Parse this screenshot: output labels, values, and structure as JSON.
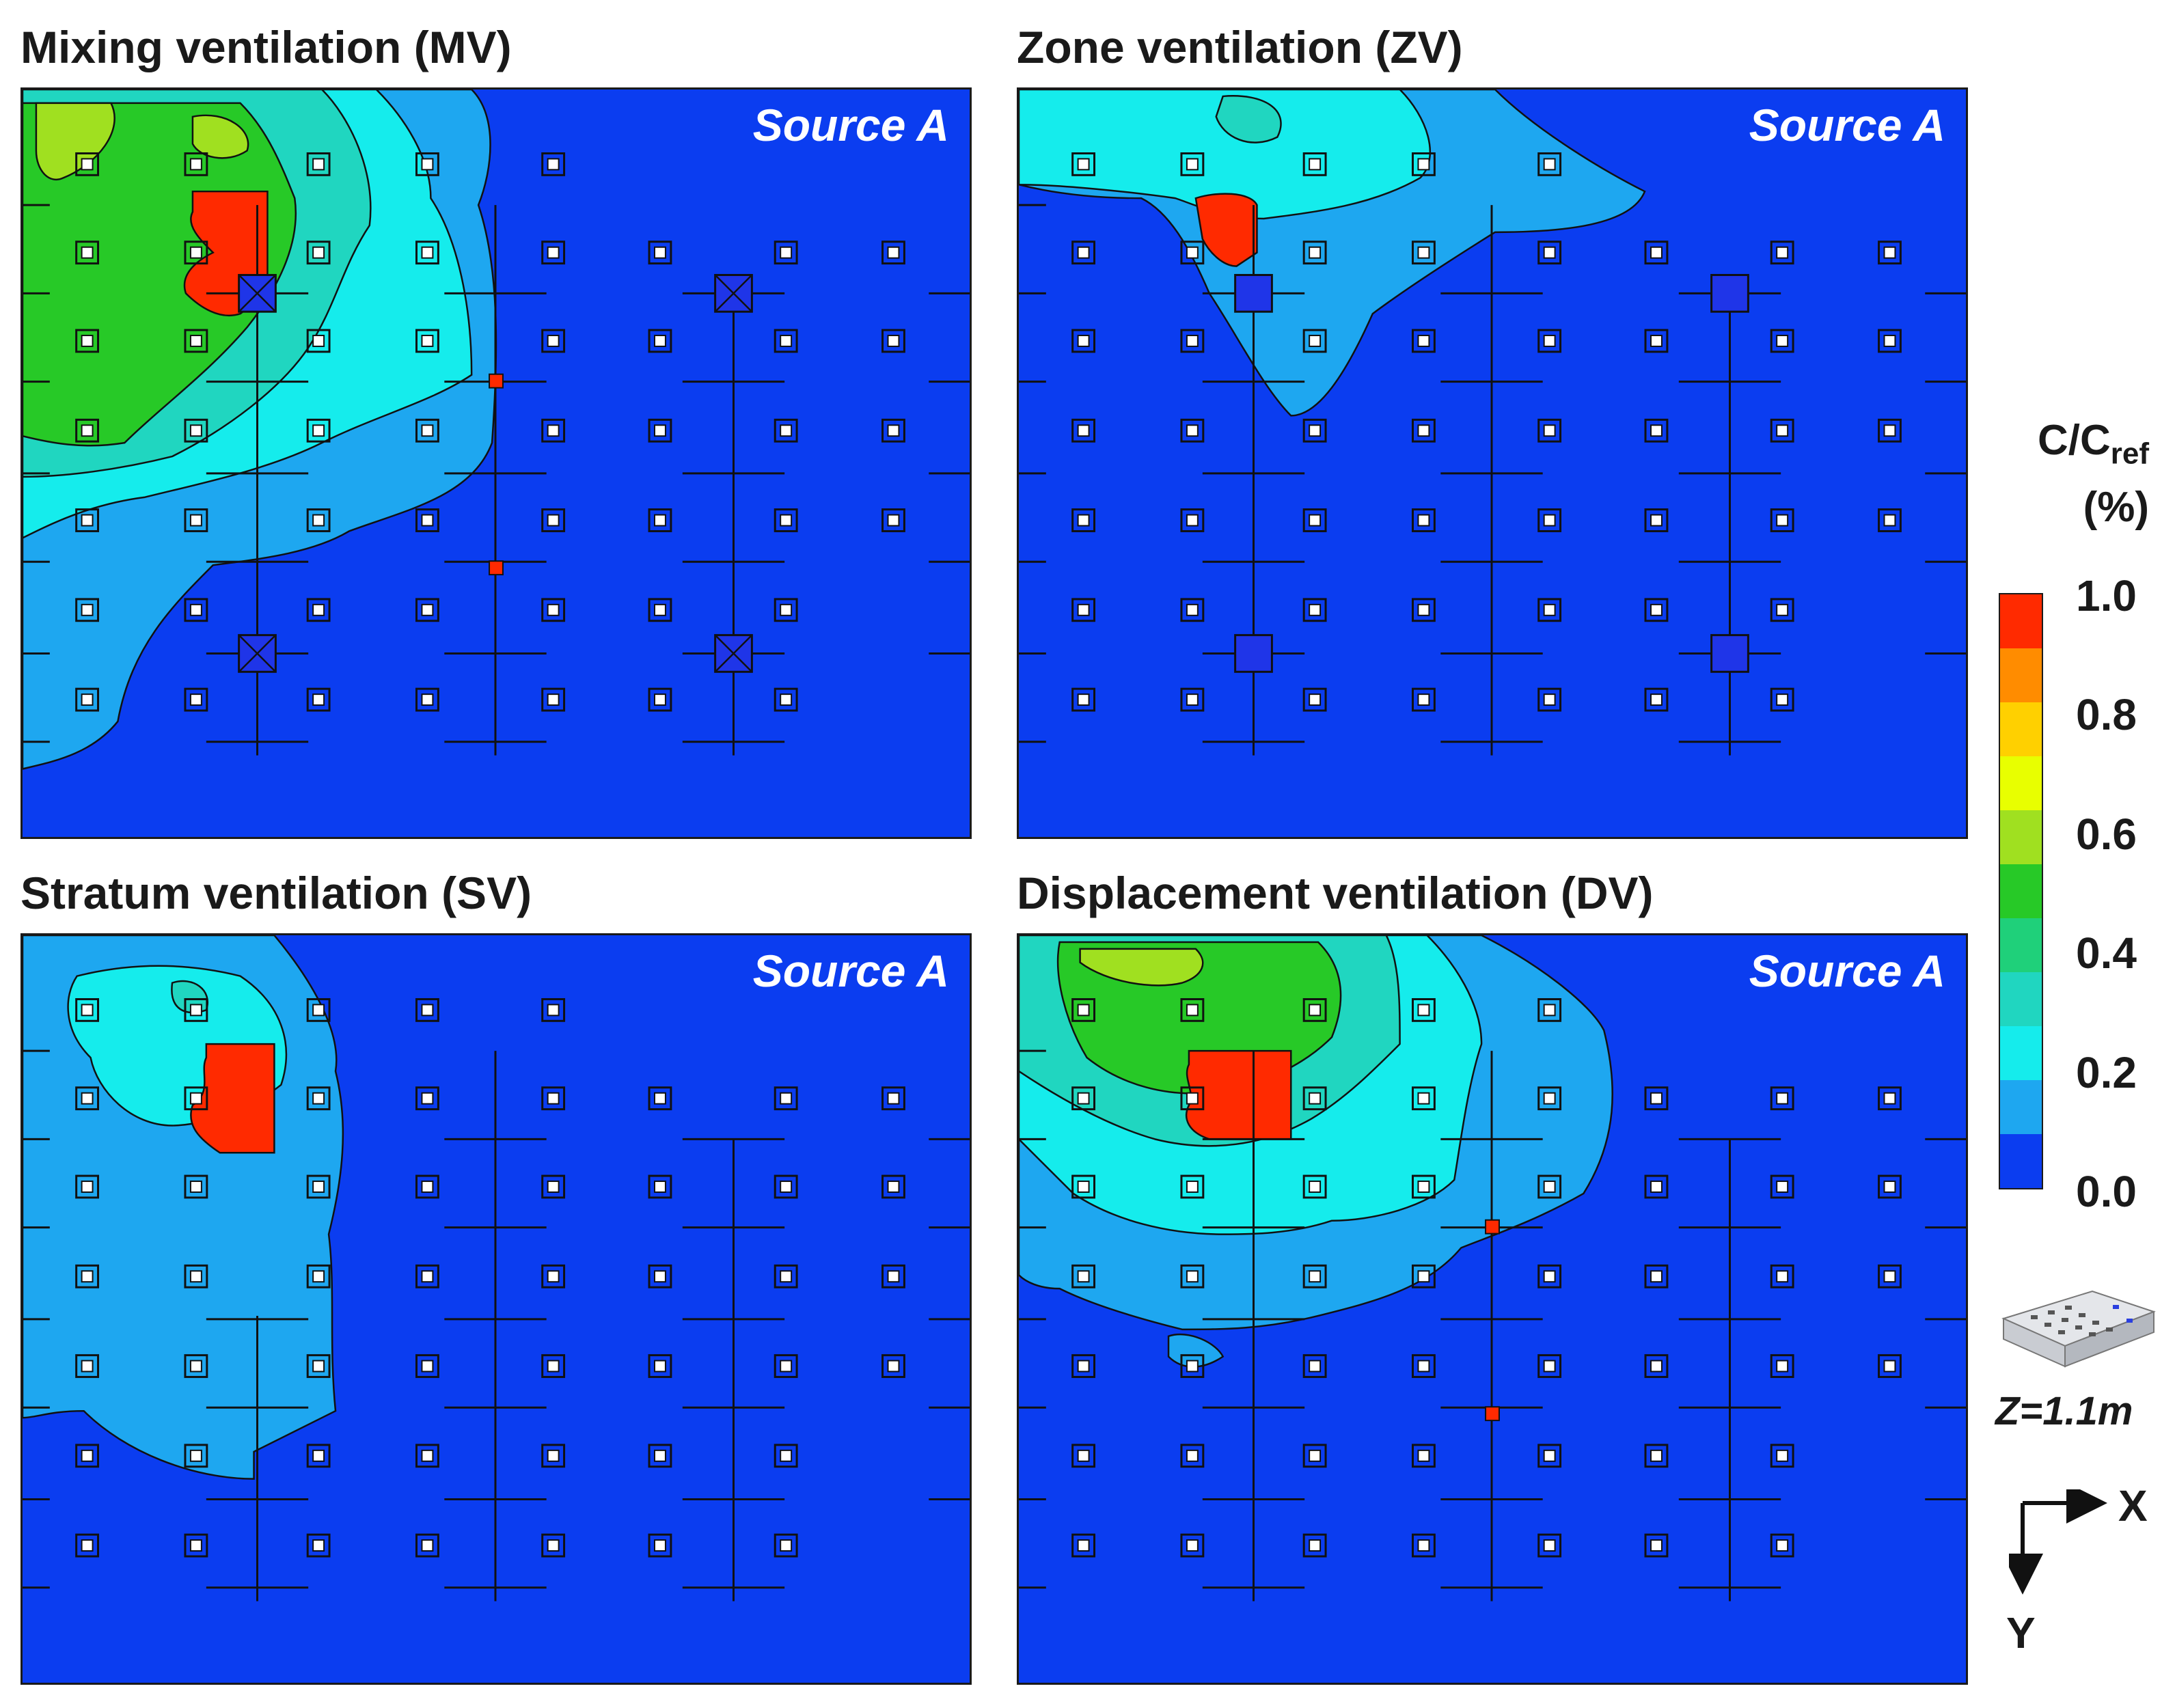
{
  "panels": [
    {
      "id": "mv",
      "title": "Mixing ventilation (MV)",
      "source": "Source A",
      "supply": "diffuser-x",
      "exhaust": [
        [
          0.5,
          0.39
        ],
        [
          0.5,
          0.64
        ]
      ]
    },
    {
      "id": "zv",
      "title": "Zone ventilation (ZV)",
      "source": "Source A",
      "supply": "plain",
      "exhaust": []
    },
    {
      "id": "sv",
      "title": "Stratum ventilation (SV)",
      "source": "Source A",
      "supply": "none",
      "exhaust": []
    },
    {
      "id": "dv",
      "title": "Displacement ventilation (DV)",
      "source": "Source A",
      "supply": "none",
      "exhaust": [
        [
          0.5,
          0.39
        ],
        [
          0.5,
          0.64
        ]
      ]
    }
  ],
  "legend": {
    "quantity_main": "C/C",
    "quantity_sub": "ref",
    "unit": "(%)",
    "ticks": [
      "1.0",
      "0.8",
      "0.6",
      "0.4",
      "0.2",
      "0.0"
    ],
    "colors": [
      "#ff2a00",
      "#ff8c00",
      "#ffd000",
      "#e8ff00",
      "#a0e020",
      "#27c927",
      "#1fd07a",
      "#20d6c0",
      "#15ecec",
      "#1ea7f0",
      "#0b3df0"
    ]
  },
  "z_label": "Z=1.1m",
  "axes": {
    "x": "X",
    "y": "Y"
  },
  "colors": {
    "background": "#0b3df0",
    "level_light_blue": "#1ea7f0",
    "level_cyan": "#15ecec",
    "level_teal": "#20d6c0",
    "level_green": "#27c927",
    "level_yellow_green": "#a0e020",
    "level_red": "#ff2a00"
  }
}
